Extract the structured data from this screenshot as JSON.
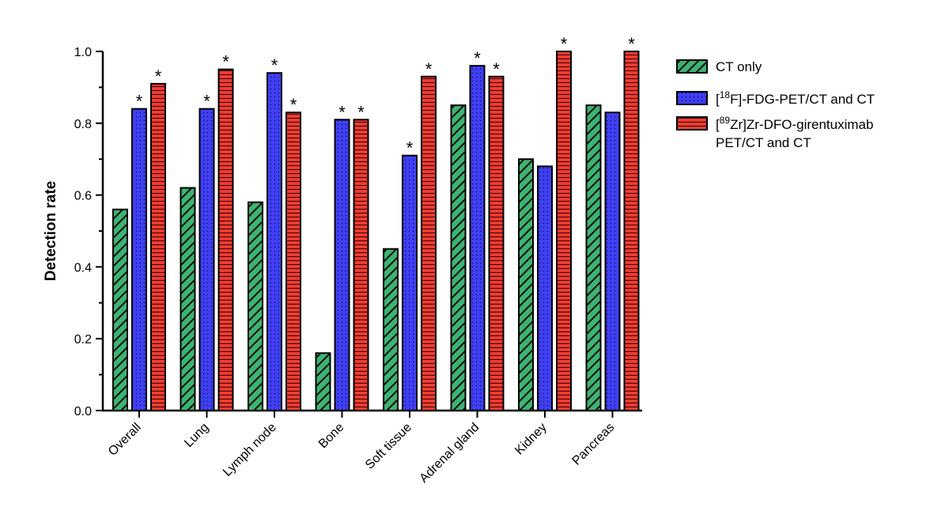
{
  "chart_data": {
    "type": "bar",
    "title": "",
    "xlabel": "",
    "ylabel": "Detection rate",
    "ylim": [
      0,
      1.0
    ],
    "yticks": [
      "0.0",
      "0.2",
      "0.4",
      "0.6",
      "0.8",
      "1.0"
    ],
    "ytick_values": [
      0,
      0.2,
      0.4,
      0.6,
      0.8,
      1.0
    ],
    "grid": false,
    "legend_position": "top-right",
    "categories": [
      "Overall",
      "Lung",
      "Lymph node",
      "Bone",
      "Soft tissue",
      "Adrenal gland",
      "Kidney",
      "Pancreas"
    ],
    "series": [
      {
        "name": "CT only",
        "color": "#3cb371",
        "pattern": "diagonal",
        "values": [
          0.56,
          0.62,
          0.58,
          0.16,
          0.45,
          0.85,
          0.7,
          0.85
        ],
        "significant": [
          false,
          false,
          false,
          false,
          false,
          false,
          false,
          false
        ]
      },
      {
        "name_sup": "18",
        "name": "F]-FDG-PET/CT and CT",
        "name_prefix": "[",
        "color": "#3f3ff5",
        "pattern": "dots",
        "values": [
          0.84,
          0.84,
          0.94,
          0.81,
          0.71,
          0.96,
          0.68,
          0.83
        ],
        "significant": [
          true,
          true,
          true,
          true,
          true,
          true,
          false,
          false
        ]
      },
      {
        "name_prefix": "[",
        "name_sup": "89",
        "name": "Zr]Zr-DFO-girentuximab",
        "name_line2": "PET/CT and CT",
        "color": "#f03c32",
        "pattern": "horizontal",
        "values": [
          0.91,
          0.95,
          0.83,
          0.81,
          0.93,
          0.93,
          1.0,
          1.0
        ],
        "significant": [
          true,
          true,
          true,
          true,
          true,
          true,
          true,
          true
        ]
      }
    ],
    "significance_marker": "*"
  }
}
